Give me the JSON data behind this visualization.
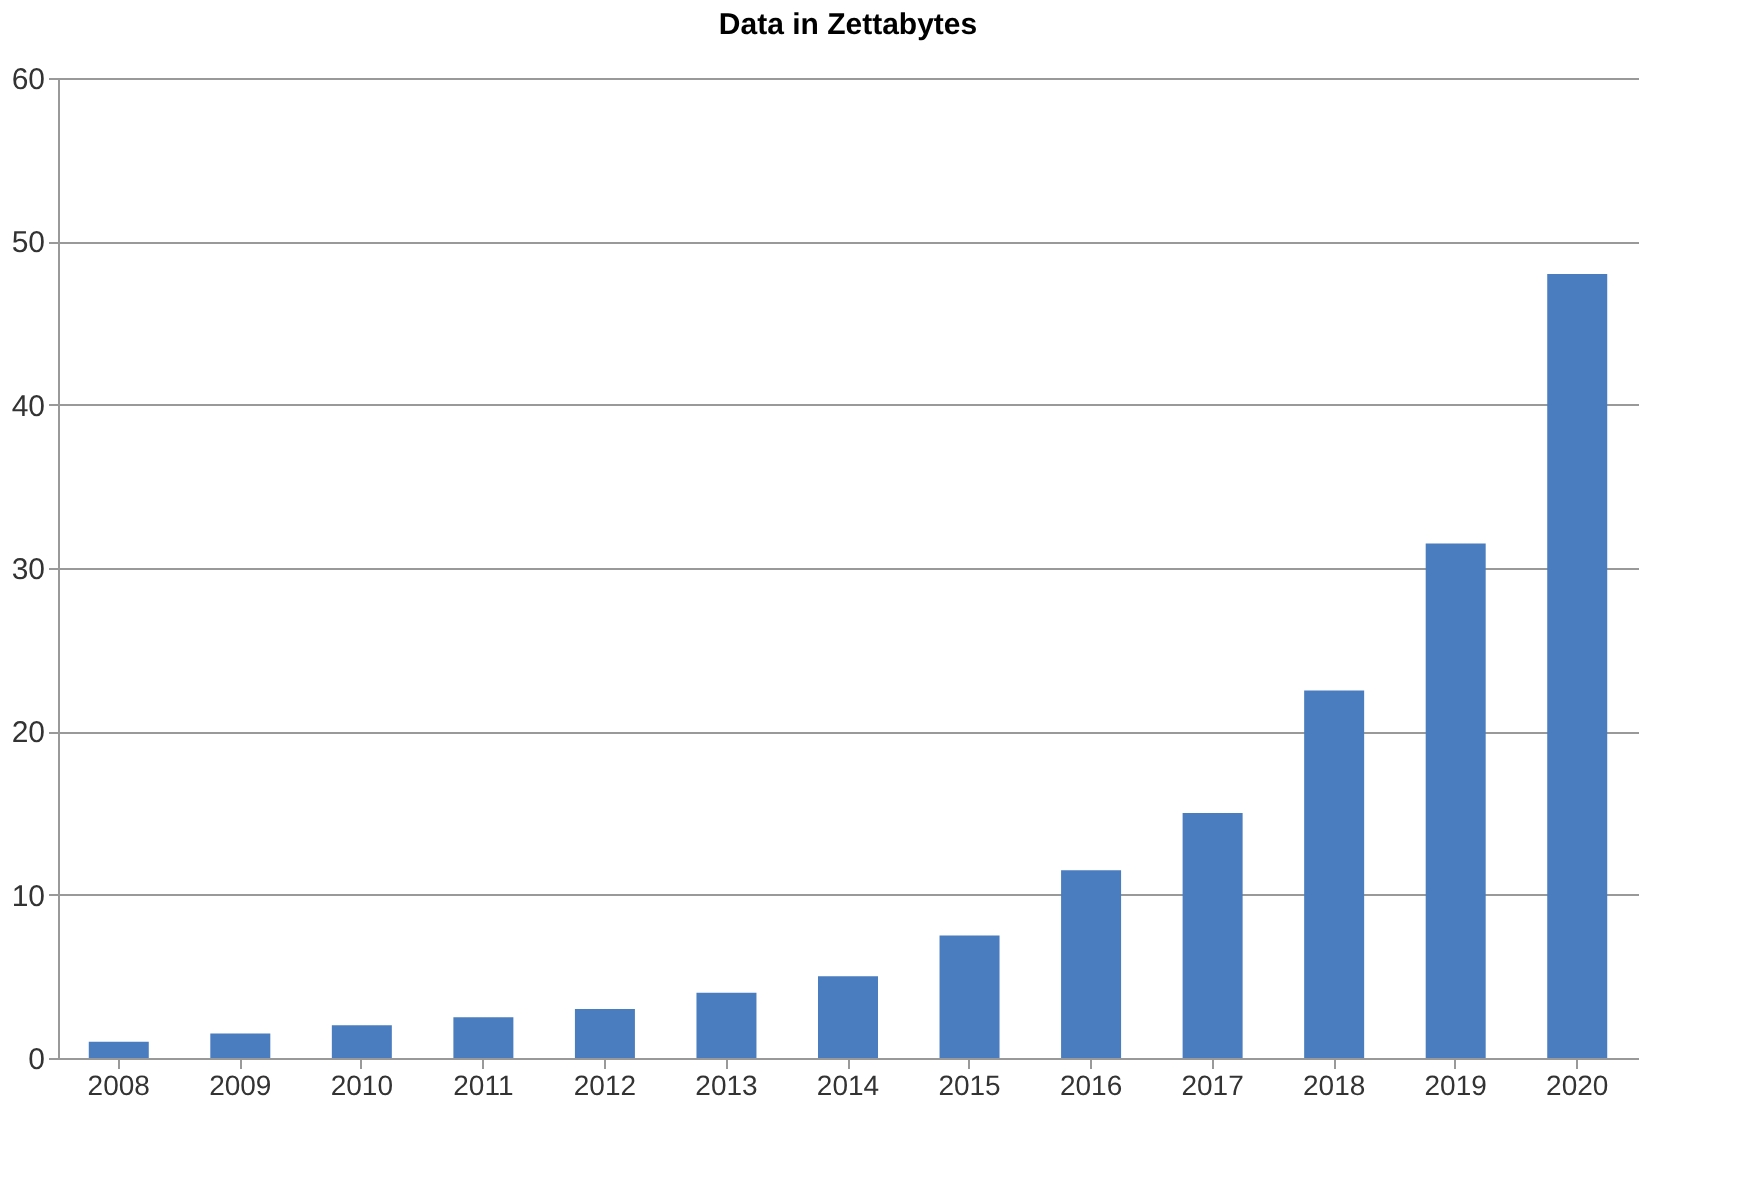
{
  "chart_data": {
    "type": "bar",
    "title": "Data in Zettabytes",
    "categories": [
      "2008",
      "2009",
      "2010",
      "2011",
      "2012",
      "2013",
      "2014",
      "2015",
      "2016",
      "2017",
      "2018",
      "2019",
      "2020"
    ],
    "values": [
      1,
      1.5,
      2,
      2.5,
      3,
      4,
      5,
      7.5,
      11.5,
      15,
      22.5,
      31.5,
      48
    ],
    "color": "#4a7dbf",
    "ylim": [
      0,
      60
    ],
    "yticks": [
      0,
      10,
      20,
      30,
      40,
      50,
      60
    ],
    "grid": "y"
  }
}
